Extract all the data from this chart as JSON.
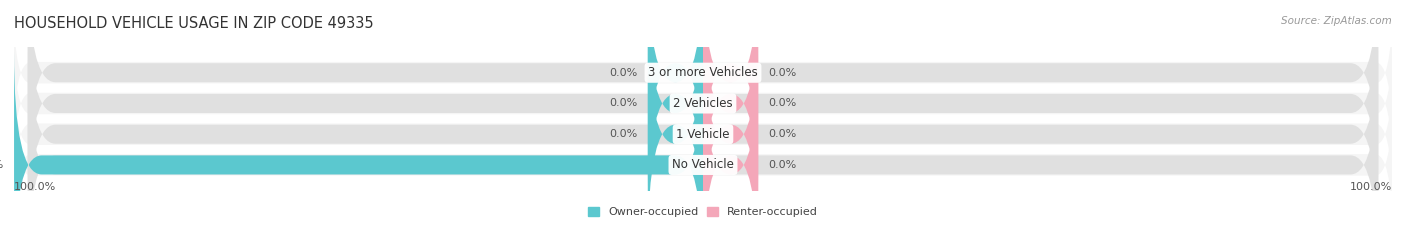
{
  "title": "HOUSEHOLD VEHICLE USAGE IN ZIP CODE 49335",
  "source": "Source: ZipAtlas.com",
  "categories": [
    "No Vehicle",
    "1 Vehicle",
    "2 Vehicles",
    "3 or more Vehicles"
  ],
  "owner_values": [
    0.0,
    0.0,
    0.0,
    100.0
  ],
  "renter_values": [
    0.0,
    0.0,
    0.0,
    0.0
  ],
  "owner_color": "#5bc8cf",
  "renter_color": "#f4a7b9",
  "bar_bg_color": "#e8e8e8",
  "bar_height": 0.62,
  "stub_size": 8.0,
  "title_fontsize": 10.5,
  "label_fontsize": 8.0,
  "category_fontsize": 8.5,
  "figsize": [
    14.06,
    2.33
  ],
  "dpi": 100,
  "axis_label_left": "100.0%",
  "axis_label_right": "100.0%",
  "legend_owner": "Owner-occupied",
  "legend_renter": "Renter-occupied",
  "bg_color": "#f5f5f5"
}
